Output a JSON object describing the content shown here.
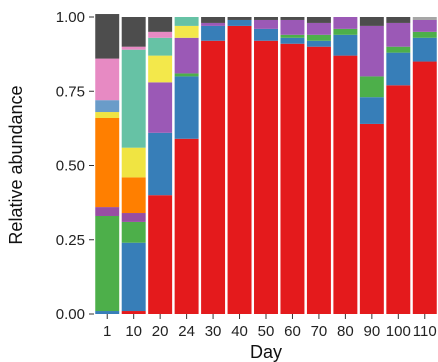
{
  "chart_data": {
    "type": "bar",
    "stacked": true,
    "xlabel": "Day",
    "ylabel": "Relative abundance",
    "ylim": [
      0,
      1
    ],
    "yticks": [
      "0.00",
      "0.25",
      "0.50",
      "0.75",
      "1.00"
    ],
    "categories": [
      "1",
      "10",
      "20",
      "24",
      "30",
      "40",
      "50",
      "60",
      "70",
      "80",
      "90",
      "100",
      "110"
    ],
    "series": [
      {
        "color": "#e41a1c",
        "values": [
          0.0,
          0.01,
          0.4,
          0.59,
          0.92,
          0.97,
          0.92,
          0.91,
          0.9,
          0.87,
          0.64,
          0.77,
          0.85
        ]
      },
      {
        "color": "#377eb8",
        "values": [
          0.01,
          0.23,
          0.21,
          0.21,
          0.05,
          0.02,
          0.04,
          0.02,
          0.02,
          0.07,
          0.09,
          0.11,
          0.08
        ]
      },
      {
        "color": "#4daf4a",
        "values": [
          0.32,
          0.07,
          0.0,
          0.01,
          0.0,
          0.0,
          0.0,
          0.01,
          0.02,
          0.02,
          0.07,
          0.02,
          0.02
        ]
      },
      {
        "color": "#984ea3",
        "values": [
          0.03,
          0.03,
          0.0,
          0.0,
          0.0,
          0.0,
          0.0,
          0.0,
          0.0,
          0.0,
          0.0,
          0.0,
          0.0
        ]
      },
      {
        "color": "#ff7f00",
        "values": [
          0.3,
          0.12,
          0.0,
          0.0,
          0.0,
          0.0,
          0.0,
          0.0,
          0.0,
          0.0,
          0.0,
          0.0,
          0.0
        ]
      },
      {
        "color": "#f0e442",
        "values": [
          0.02,
          0.1,
          0.0,
          0.0,
          0.0,
          0.0,
          0.0,
          0.0,
          0.0,
          0.0,
          0.0,
          0.0,
          0.0
        ]
      },
      {
        "color": "#9b59b6",
        "values": [
          0.0,
          0.0,
          0.17,
          0.12,
          0.01,
          0.0,
          0.03,
          0.05,
          0.04,
          0.04,
          0.17,
          0.08,
          0.04
        ]
      },
      {
        "color": "#f3e84b",
        "values": [
          0.0,
          0.0,
          0.09,
          0.04,
          0.0,
          0.0,
          0.0,
          0.0,
          0.0,
          0.0,
          0.0,
          0.0,
          0.0
        ]
      },
      {
        "color": "#66c2a5",
        "values": [
          0.0,
          0.33,
          0.06,
          0.03,
          0.0,
          0.0,
          0.0,
          0.0,
          0.0,
          0.0,
          0.0,
          0.0,
          0.0
        ]
      },
      {
        "color": "#6a9cc9",
        "values": [
          0.04,
          0.0,
          0.0,
          0.0,
          0.0,
          0.0,
          0.0,
          0.0,
          0.0,
          0.0,
          0.0,
          0.0,
          0.0
        ]
      },
      {
        "color": "#e78ac3",
        "values": [
          0.14,
          0.01,
          0.02,
          0.0,
          0.0,
          0.0,
          0.0,
          0.0,
          0.0,
          0.0,
          0.0,
          0.0,
          0.0
        ]
      },
      {
        "color": "#a6a6a6",
        "values": [
          0.0,
          0.0,
          0.0,
          0.0,
          0.0,
          0.0,
          0.0,
          0.0,
          0.0,
          0.0,
          0.0,
          0.0,
          0.01
        ]
      },
      {
        "color": "#4d4d4d",
        "values": [
          0.15,
          0.1,
          0.05,
          0.0,
          0.02,
          0.01,
          0.01,
          0.01,
          0.02,
          0.0,
          0.03,
          0.02,
          0.0
        ]
      }
    ]
  }
}
